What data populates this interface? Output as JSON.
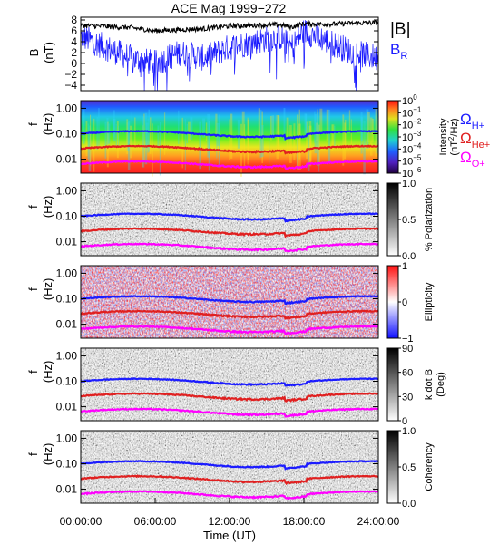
{
  "chart_data": [
    {
      "type": "line",
      "title": "ACE Mag 1999−272",
      "ylabel": "B",
      "yunit": "(nT)",
      "ylim": [
        -5,
        8.5
      ],
      "yticks": [
        -4,
        -2,
        0,
        2,
        4,
        6,
        8
      ],
      "x_range_hours": [
        0,
        24
      ],
      "series": [
        {
          "name": "|B|",
          "color": "#000000",
          "x": [
            0,
            2,
            4,
            6,
            8,
            10,
            12,
            14,
            16,
            17,
            18,
            20,
            22,
            24
          ],
          "values": [
            7.0,
            6.8,
            6.6,
            6.0,
            6.2,
            6.4,
            6.9,
            7.0,
            7.1,
            6.7,
            7.3,
            7.2,
            7.4,
            7.5
          ]
        },
        {
          "name": "B_R",
          "name_base": "B",
          "name_sub": "R",
          "color": "#1c1cff",
          "x": [
            0,
            2,
            4,
            6,
            8,
            10,
            12,
            14,
            16,
            17,
            18,
            20,
            22,
            24
          ],
          "values": [
            5.0,
            3.0,
            1.0,
            0.0,
            2.0,
            1.0,
            3.0,
            4.0,
            5.0,
            3.0,
            6.0,
            4.0,
            2.0,
            1.0
          ]
        }
      ]
    },
    {
      "type": "heatmap",
      "ylabel": "f",
      "yunit": "(Hz)",
      "ytick_labels": [
        "1.00",
        "0.10",
        "0.01"
      ],
      "colorbar": {
        "label": "Intensity",
        "unit_base": "(nT",
        "unit_sup": "2",
        "unit_rest": "/Hz)",
        "ticks": [
          "10",
          "10",
          "10",
          "10",
          "10",
          "10",
          "10"
        ],
        "tick_exponents": [
          "0",
          "−1",
          "−2",
          "−3",
          "−4",
          "−5",
          "−6"
        ]
      },
      "legend": [
        {
          "base": "Ω",
          "sub": "H+",
          "color": "#1c1cff"
        },
        {
          "base": "Ω",
          "sub": "He+",
          "color": "#e02020"
        },
        {
          "base": "Ω",
          "sub": "O+",
          "color": "#ff00ff"
        }
      ]
    },
    {
      "type": "heatmap",
      "ylabel": "f",
      "yunit": "(Hz)",
      "ytick_labels": [
        "1.00",
        "0.10",
        "0.01"
      ],
      "colorbar": {
        "label": "% Polarization",
        "ticks": [
          "1.0",
          "0.5",
          "0.0"
        ]
      }
    },
    {
      "type": "heatmap",
      "ylabel": "f",
      "yunit": "(Hz)",
      "ytick_labels": [
        "1.00",
        "0.10",
        "0.01"
      ],
      "colorbar": {
        "label": "Ellipticity",
        "ticks": [
          "1",
          "0",
          "−1"
        ]
      }
    },
    {
      "type": "heatmap",
      "ylabel": "f",
      "yunit": "(Hz)",
      "ytick_labels": [
        "1.00",
        "0.10",
        "0.01"
      ],
      "colorbar": {
        "label": "k dot B",
        "unit": "(Deg)",
        "ticks": [
          "90",
          "60",
          "30",
          "0"
        ]
      }
    },
    {
      "type": "heatmap",
      "ylabel": "f",
      "yunit": "(Hz)",
      "ytick_labels": [
        "1.00",
        "0.10",
        "0.01"
      ],
      "colorbar": {
        "label": "Coherency",
        "ticks": [
          "1.0",
          "0.5",
          "0.0"
        ]
      },
      "xtick_labels": [
        "00:00:00",
        "06:00:00",
        "12:00:00",
        "18:00:00",
        "24:00:00"
      ],
      "xlabel": "Time (UT)"
    }
  ]
}
